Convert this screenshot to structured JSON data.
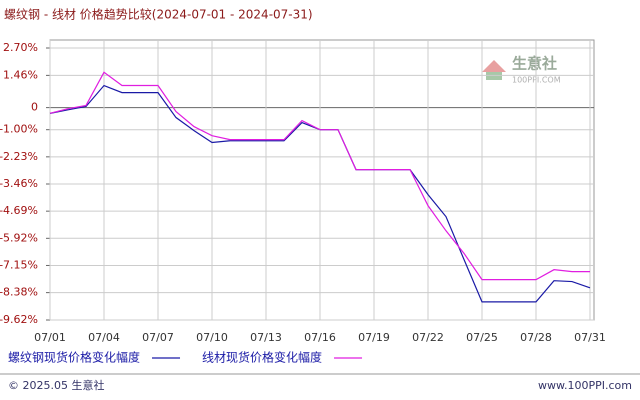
{
  "chart_data": {
    "type": "line",
    "title": "螺纹钢 - 线材 价格趋势比较(2024-07-01 - 2024-07-31)",
    "watermark": "生意社",
    "watermark_sub": "100PPI.COM",
    "footer_left": "© 2025.05 生意社",
    "footer_right": "www.100PPI.com",
    "categories": [
      "07/01",
      null,
      null,
      "07/04",
      null,
      null,
      "07/07",
      null,
      null,
      "07/10",
      null,
      null,
      "07/13",
      null,
      null,
      "07/16",
      null,
      null,
      "07/19",
      null,
      null,
      "07/22",
      null,
      null,
      "07/25",
      null,
      null,
      "07/28",
      null,
      null,
      "07/31"
    ],
    "series": [
      {
        "name": "螺纹钢现货价格变化幅度",
        "color": "#1a1aa6",
        "values": [
          -0.26,
          -0.1,
          0.05,
          1.0,
          0.68,
          0.68,
          0.68,
          -0.45,
          -1.04,
          -1.58,
          -1.5,
          -1.5,
          -1.5,
          -1.5,
          -0.68,
          -1.0,
          -1.0,
          -2.81,
          -2.81,
          -2.81,
          -2.81,
          -3.94,
          -4.94,
          -6.88,
          -8.8,
          -8.8,
          -8.8,
          -8.8,
          -7.84,
          -7.88,
          -8.16
        ]
      },
      {
        "name": "线材现货价格变化幅度",
        "color": "#e01ee0",
        "values": [
          -0.26,
          -0.05,
          0.1,
          1.6,
          1.0,
          1.0,
          1.0,
          -0.18,
          -0.86,
          -1.27,
          -1.45,
          -1.45,
          -1.45,
          -1.45,
          -0.59,
          -1.0,
          -1.0,
          -2.81,
          -2.81,
          -2.81,
          -2.81,
          -4.44,
          -5.58,
          -6.6,
          -7.79,
          -7.79,
          -7.79,
          -7.79,
          -7.34,
          -7.43,
          -7.43
        ]
      }
    ],
    "ylim": [
      -9.62,
      2.7
    ],
    "yticks": [
      {
        "value": 2.7,
        "label": "2.70%"
      },
      {
        "value": 1.46,
        "label": "1.46%"
      },
      0,
      {
        "value": -1.0,
        "label": "-1.00%"
      },
      {
        "value": -2.23,
        "label": "-2.23%"
      },
      {
        "value": -3.46,
        "label": "-3.46%"
      },
      {
        "value": -4.69,
        "label": "-4.69%"
      },
      {
        "value": -5.92,
        "label": "-5.92%"
      },
      {
        "value": -7.15,
        "label": "-7.15%"
      },
      {
        "value": -8.38,
        "label": "-8.38%"
      },
      {
        "value": -9.62,
        "label": "-9.62%"
      }
    ],
    "grid": true
  }
}
